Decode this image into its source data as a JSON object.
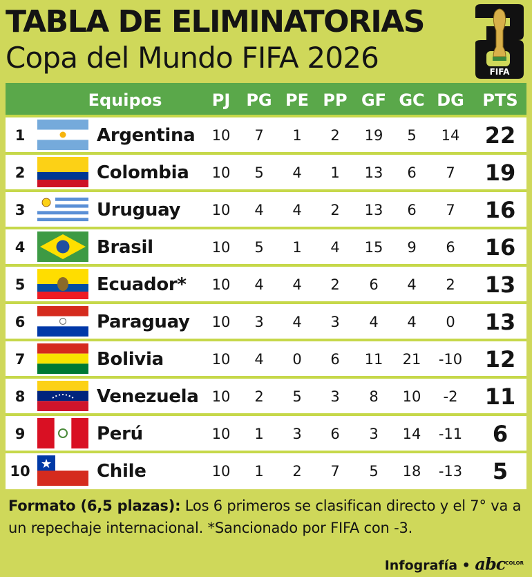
{
  "header": {
    "title_line1": "TABLA DE ELIMINATORIAS",
    "title_line2": "Copa del Mundo FIFA 2026",
    "logo_text": "FIFA"
  },
  "table": {
    "columns": [
      "",
      "Equipos",
      "PJ",
      "PG",
      "PE",
      "PP",
      "GF",
      "GC",
      "DG",
      "PTS"
    ],
    "rows": [
      {
        "pos": "1",
        "team": "Argentina",
        "flag": "argentina-flag-icon",
        "pj": "10",
        "pg": "7",
        "pe": "1",
        "pp": "2",
        "gf": "19",
        "gc": "5",
        "dg": "14",
        "pts": "22"
      },
      {
        "pos": "2",
        "team": "Colombia",
        "flag": "colombia-flag-icon",
        "pj": "10",
        "pg": "5",
        "pe": "4",
        "pp": "1",
        "gf": "13",
        "gc": "6",
        "dg": "7",
        "pts": "19"
      },
      {
        "pos": "3",
        "team": "Uruguay",
        "flag": "uruguay-flag-icon",
        "pj": "10",
        "pg": "4",
        "pe": "4",
        "pp": "2",
        "gf": "13",
        "gc": "6",
        "dg": "7",
        "pts": "16"
      },
      {
        "pos": "4",
        "team": "Brasil",
        "flag": "brasil-flag-icon",
        "pj": "10",
        "pg": "5",
        "pe": "1",
        "pp": "4",
        "gf": "15",
        "gc": "9",
        "dg": "6",
        "pts": "16"
      },
      {
        "pos": "5",
        "team": "Ecuador*",
        "flag": "ecuador-flag-icon",
        "pj": "10",
        "pg": "4",
        "pe": "4",
        "pp": "2",
        "gf": "6",
        "gc": "4",
        "dg": "2",
        "pts": "13"
      },
      {
        "pos": "6",
        "team": "Paraguay",
        "flag": "paraguay-flag-icon",
        "pj": "10",
        "pg": "3",
        "pe": "4",
        "pp": "3",
        "gf": "4",
        "gc": "4",
        "dg": "0",
        "pts": "13"
      },
      {
        "pos": "7",
        "team": "Bolivia",
        "flag": "bolivia-flag-icon",
        "pj": "10",
        "pg": "4",
        "pe": "0",
        "pp": "6",
        "gf": "11",
        "gc": "21",
        "dg": "-10",
        "pts": "12"
      },
      {
        "pos": "8",
        "team": "Venezuela",
        "flag": "venezuela-flag-icon",
        "pj": "10",
        "pg": "2",
        "pe": "5",
        "pp": "3",
        "gf": "8",
        "gc": "10",
        "dg": "-2",
        "pts": "11"
      },
      {
        "pos": "9",
        "team": "Perú",
        "flag": "peru-flag-icon",
        "pj": "10",
        "pg": "1",
        "pe": "3",
        "pp": "6",
        "gf": "3",
        "gc": "14",
        "dg": "-11",
        "pts": "6"
      },
      {
        "pos": "10",
        "team": "Chile",
        "flag": "chile-flag-icon",
        "pj": "10",
        "pg": "1",
        "pe": "2",
        "pp": "7",
        "gf": "5",
        "gc": "18",
        "dg": "-13",
        "pts": "5"
      }
    ]
  },
  "footer": {
    "note_bold": "Formato (6,5 plazas):",
    "note_text": " Los 6 primeros se clasifican directo y el 7° va a un repechaje internacional. *Sancionado por FIFA con -3.",
    "credit_label": "Infografía •",
    "credit_brand": "abc",
    "credit_brand_small": "COLOR"
  },
  "colors": {
    "background": "#cfd85a",
    "header_green": "#5aa84a",
    "row_white": "#ffffff"
  }
}
